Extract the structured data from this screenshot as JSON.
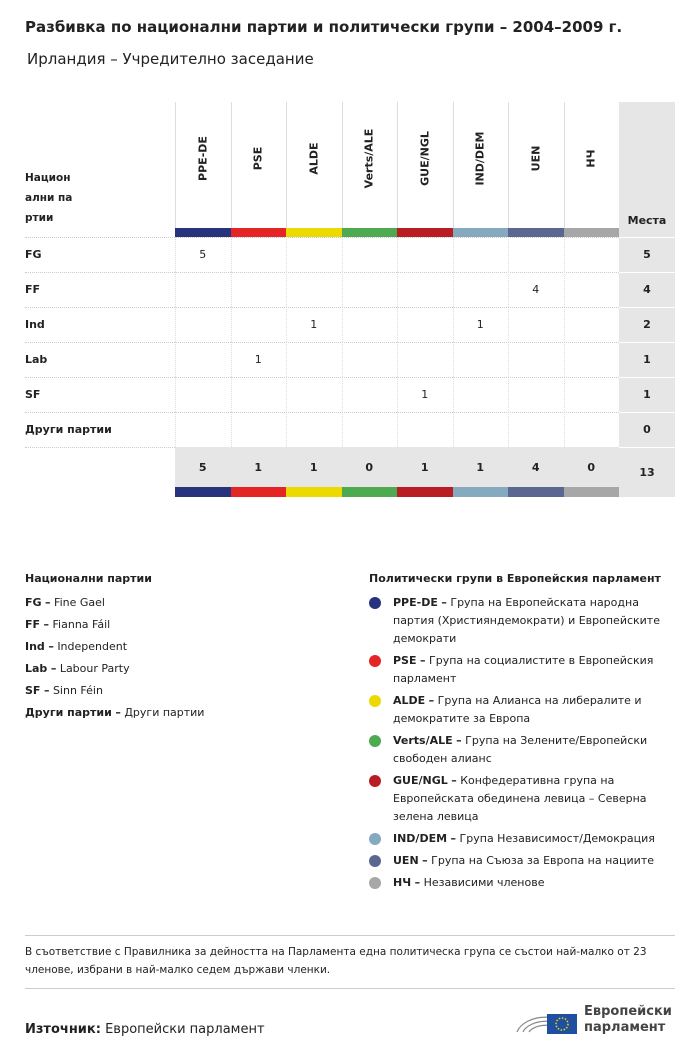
{
  "header": {
    "title": "Разбивка по национални партии и политически групи – 2004–2009 г.",
    "subtitle": "Ирландия – Учредително заседание"
  },
  "table": {
    "party_header": "Национални партии",
    "seats_header": "Места",
    "groups": [
      {
        "code": "PPE-DE",
        "color": "#27337d"
      },
      {
        "code": "PSE",
        "color": "#e32526"
      },
      {
        "code": "ALDE",
        "color": "#ecd900"
      },
      {
        "code": "Verts/ALE",
        "color": "#4daa50"
      },
      {
        "code": "GUE/NGL",
        "color": "#b81d24"
      },
      {
        "code": "IND/DEM",
        "color": "#85a9bf"
      },
      {
        "code": "UEN",
        "color": "#5a6891"
      },
      {
        "code": "НЧ",
        "color": "#a7a7a7"
      }
    ],
    "rows": [
      {
        "party": "FG",
        "cells": [
          5,
          null,
          null,
          null,
          null,
          null,
          null,
          null
        ],
        "seats": 5
      },
      {
        "party": "FF",
        "cells": [
          null,
          null,
          null,
          null,
          null,
          null,
          4,
          null
        ],
        "seats": 4
      },
      {
        "party": "Ind",
        "cells": [
          null,
          null,
          1,
          null,
          null,
          1,
          null,
          null
        ],
        "seats": 2
      },
      {
        "party": "Lab",
        "cells": [
          null,
          1,
          null,
          null,
          null,
          null,
          null,
          null
        ],
        "seats": 1
      },
      {
        "party": "SF",
        "cells": [
          null,
          null,
          null,
          null,
          1,
          null,
          null,
          null
        ],
        "seats": 1
      },
      {
        "party": "Други партии",
        "cells": [
          null,
          null,
          null,
          null,
          null,
          null,
          null,
          null
        ],
        "seats": 0
      }
    ],
    "totals": [
      5,
      1,
      1,
      0,
      1,
      1,
      4,
      0
    ],
    "total_seats": 13
  },
  "legend": {
    "separator": "–",
    "parties_title": "Национални партии",
    "parties": [
      {
        "abbr": "FG",
        "name": "Fine Gael"
      },
      {
        "abbr": "FF",
        "name": "Fianna Fáil"
      },
      {
        "abbr": "Ind",
        "name": "Independent"
      },
      {
        "abbr": "Lab",
        "name": "Labour Party"
      },
      {
        "abbr": "SF",
        "name": "Sinn Féin"
      },
      {
        "abbr": "Други партии",
        "name": "Други партии"
      }
    ],
    "groups_title": "Политически групи в Европейския парламент",
    "groups": [
      {
        "abbr": "PPE-DE",
        "name": "Група на Европейската народна партия (Християндемократи) и Европейските демократи"
      },
      {
        "abbr": "PSE",
        "name": "Група на социалистите в Европейския парламент"
      },
      {
        "abbr": "ALDE",
        "name": "Група на Алианса на либералите и демократите за Европа"
      },
      {
        "abbr": "Verts/ALE",
        "name": "Група на Зелените/Европейски свободен алианс"
      },
      {
        "abbr": "GUE/NGL",
        "name": "Конфедеративна група на Европейската обединена левица – Северна зелена левица"
      },
      {
        "abbr": "IND/DEM",
        "name": "Група Независимост/Демокрация"
      },
      {
        "abbr": "UEN",
        "name": "Група на Съюза за Европа на нациите"
      },
      {
        "abbr": "НЧ",
        "name": "Независими членове"
      }
    ]
  },
  "footer": {
    "note": "В съответствие с Правилника за дейността на Парламента една политическа група се състои най-малко от 23 членове, избрани в най-малко седем държави членки.",
    "source_label": "Източник:",
    "source": "Европейски парламент",
    "logo_line1": "Европейски",
    "logo_line2": "парламент"
  }
}
